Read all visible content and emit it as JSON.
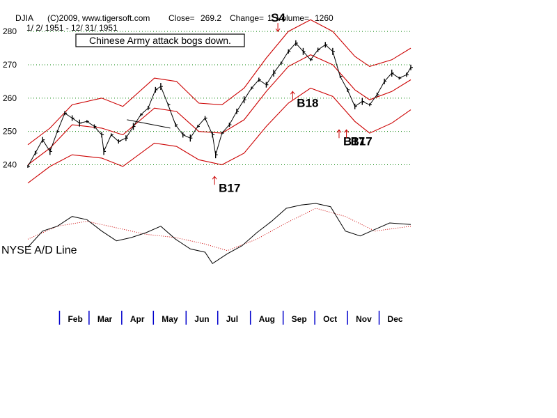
{
  "header": {
    "symbol": "DJIA",
    "copyright": "(C)2009, www.tigersoft.com",
    "close_label": "Close=",
    "close_value": "269.2",
    "change_label": "Change=",
    "change_value": "1",
    "volume_label": "Volume=",
    "volume_value": "1260",
    "date_range": "1/ 2/ 1951 - 12/ 31/ 1951"
  },
  "annotation": {
    "text": "Chinese Army attack bogs down."
  },
  "indicator": {
    "label": "NYSE A/D Line"
  },
  "colors": {
    "price": "#000000",
    "bands": "#cc0000",
    "grid": "#008000",
    "month_ticks": "#0000cc",
    "signal_arrows": "#cc0000",
    "ad_line": "#000000",
    "ad_ma": "#cc0000"
  },
  "chart_data": {
    "type": "line",
    "title": "DJIA",
    "subtitle": "1/ 2/ 1951 - 12/ 31/ 1951",
    "ylim": [
      233,
      284
    ],
    "yticks": [
      240,
      250,
      260,
      270,
      280
    ],
    "grid": "horizontal dotted",
    "months": [
      "Feb",
      "Mar",
      "Apr",
      "May",
      "Jun",
      "Jul",
      "Aug",
      "Sep",
      "Oct",
      "Nov",
      "Dec"
    ],
    "price_points": [
      [
        "1951-01-02",
        239.5
      ],
      [
        "1951-01-09",
        243.5
      ],
      [
        "1951-01-16",
        247.5
      ],
      [
        "1951-01-23",
        244.0
      ],
      [
        "1951-01-30",
        250.0
      ],
      [
        "1951-02-06",
        255.5
      ],
      [
        "1951-02-13",
        254.0
      ],
      [
        "1951-02-20",
        252.5
      ],
      [
        "1951-02-27",
        253.0
      ],
      [
        "1951-03-06",
        251.5
      ],
      [
        "1951-03-13",
        249.0
      ],
      [
        "1951-03-15",
        244.0
      ],
      [
        "1951-03-22",
        249.0
      ],
      [
        "1951-03-29",
        247.0
      ],
      [
        "1951-04-05",
        248.0
      ],
      [
        "1951-04-12",
        251.5
      ],
      [
        "1951-04-19",
        255.0
      ],
      [
        "1951-04-26",
        257.0
      ],
      [
        "1951-05-03",
        262.5
      ],
      [
        "1951-05-08",
        263.5
      ],
      [
        "1951-05-15",
        258.0
      ],
      [
        "1951-05-22",
        252.0
      ],
      [
        "1951-05-29",
        249.0
      ],
      [
        "1951-06-05",
        248.0
      ],
      [
        "1951-06-12",
        251.5
      ],
      [
        "1951-06-19",
        254.0
      ],
      [
        "1951-06-26",
        249.0
      ],
      [
        "1951-06-29",
        243.0
      ],
      [
        "1951-07-05",
        249.5
      ],
      [
        "1951-07-12",
        252.0
      ],
      [
        "1951-07-19",
        256.0
      ],
      [
        "1951-07-26",
        259.5
      ],
      [
        "1951-08-02",
        263.0
      ],
      [
        "1951-08-09",
        265.5
      ],
      [
        "1951-08-16",
        264.0
      ],
      [
        "1951-08-23",
        267.5
      ],
      [
        "1951-08-30",
        270.5
      ],
      [
        "1951-09-06",
        274.0
      ],
      [
        "1951-09-13",
        276.5
      ],
      [
        "1951-09-20",
        274.0
      ],
      [
        "1951-09-27",
        271.5
      ],
      [
        "1951-10-04",
        274.5
      ],
      [
        "1951-10-11",
        276.0
      ],
      [
        "1951-10-18",
        274.0
      ],
      [
        "1951-10-25",
        266.5
      ],
      [
        "1951-11-01",
        262.5
      ],
      [
        "1951-11-08",
        257.5
      ],
      [
        "1951-11-15",
        259.0
      ],
      [
        "1951-11-22",
        258.0
      ],
      [
        "1951-11-29",
        261.0
      ],
      [
        "1951-12-06",
        265.0
      ],
      [
        "1951-12-13",
        267.5
      ],
      [
        "1951-12-20",
        266.0
      ],
      [
        "1951-12-27",
        267.0
      ],
      [
        "1951-12-31",
        269.2
      ]
    ],
    "bands": {
      "upper": [
        [
          "1951-01-02",
          246.0
        ],
        [
          "1951-01-23",
          251.0
        ],
        [
          "1951-02-13",
          258.0
        ],
        [
          "1951-03-13",
          260.0
        ],
        [
          "1951-04-02",
          257.5
        ],
        [
          "1951-05-02",
          266.0
        ],
        [
          "1951-05-23",
          265.0
        ],
        [
          "1951-06-13",
          258.5
        ],
        [
          "1951-07-05",
          258.0
        ],
        [
          "1951-07-26",
          263.0
        ],
        [
          "1951-08-16",
          272.0
        ],
        [
          "1951-09-06",
          280.0
        ],
        [
          "1951-09-27",
          283.5
        ],
        [
          "1951-10-18",
          280.0
        ],
        [
          "1951-11-08",
          272.5
        ],
        [
          "1951-11-22",
          269.5
        ],
        [
          "1951-12-13",
          271.5
        ],
        [
          "1951-12-31",
          275.0
        ]
      ],
      "middle": [
        [
          "1951-01-02",
          240.0
        ],
        [
          "1951-01-23",
          245.0
        ],
        [
          "1951-02-13",
          252.0
        ],
        [
          "1951-03-13",
          251.0
        ],
        [
          "1951-04-02",
          249.0
        ],
        [
          "1951-05-02",
          257.0
        ],
        [
          "1951-05-23",
          256.0
        ],
        [
          "1951-06-13",
          250.0
        ],
        [
          "1951-07-05",
          249.5
        ],
        [
          "1951-07-26",
          253.5
        ],
        [
          "1951-08-16",
          262.0
        ],
        [
          "1951-09-06",
          269.5
        ],
        [
          "1951-09-27",
          273.0
        ],
        [
          "1951-10-18",
          270.0
        ],
        [
          "1951-11-08",
          262.5
        ],
        [
          "1951-11-22",
          259.5
        ],
        [
          "1951-12-13",
          262.0
        ],
        [
          "1951-12-31",
          265.5
        ]
      ],
      "lower": [
        [
          "1951-01-02",
          234.5
        ],
        [
          "1951-01-23",
          239.5
        ],
        [
          "1951-02-13",
          243.0
        ],
        [
          "1951-03-13",
          242.0
        ],
        [
          "1951-04-02",
          239.5
        ],
        [
          "1951-05-02",
          246.5
        ],
        [
          "1951-05-23",
          245.5
        ],
        [
          "1951-06-13",
          241.5
        ],
        [
          "1951-07-05",
          240.0
        ],
        [
          "1951-07-26",
          243.5
        ],
        [
          "1951-08-16",
          251.5
        ],
        [
          "1951-09-06",
          258.5
        ],
        [
          "1951-09-27",
          263.0
        ],
        [
          "1951-10-18",
          260.5
        ],
        [
          "1951-11-08",
          253.0
        ],
        [
          "1951-11-22",
          249.5
        ],
        [
          "1951-12-13",
          252.5
        ],
        [
          "1951-12-31",
          256.5
        ]
      ]
    },
    "signals": [
      {
        "label": "S4",
        "date": "1951-08-27",
        "direction": "sell",
        "y": 280.0
      },
      {
        "label": "B18",
        "date": "1951-09-10",
        "direction": "buy",
        "y": 262.0
      },
      {
        "label": "B17",
        "date": "1951-06-28",
        "direction": "buy",
        "y": 236.5
      },
      {
        "label": "B17",
        "date": "1951-10-24",
        "direction": "buy",
        "y": 250.5
      },
      {
        "label": "B17",
        "date": "1951-10-31",
        "direction": "buy",
        "y": 250.5
      }
    ],
    "trendlines": [
      {
        "from": [
          "1951-04-06",
          253.5
        ],
        "to": [
          "1951-05-17",
          251.0
        ]
      }
    ],
    "ad_line": {
      "label": "NYSE A/D Line",
      "points": [
        [
          "1951-01-02",
          10
        ],
        [
          "1951-01-16",
          30
        ],
        [
          "1951-01-30",
          36
        ],
        [
          "1951-02-13",
          48
        ],
        [
          "1951-02-27",
          44
        ],
        [
          "1951-03-13",
          30
        ],
        [
          "1951-03-27",
          18
        ],
        [
          "1951-04-10",
          22
        ],
        [
          "1951-04-24",
          28
        ],
        [
          "1951-05-08",
          36
        ],
        [
          "1951-05-22",
          20
        ],
        [
          "1951-06-05",
          8
        ],
        [
          "1951-06-19",
          4
        ],
        [
          "1951-06-26",
          -10
        ],
        [
          "1951-07-10",
          2
        ],
        [
          "1951-07-24",
          12
        ],
        [
          "1951-08-07",
          28
        ],
        [
          "1951-08-21",
          42
        ],
        [
          "1951-09-04",
          58
        ],
        [
          "1951-09-18",
          62
        ],
        [
          "1951-10-02",
          64
        ],
        [
          "1951-10-16",
          60
        ],
        [
          "1951-10-30",
          30
        ],
        [
          "1951-11-13",
          24
        ],
        [
          "1951-11-27",
          32
        ],
        [
          "1951-12-11",
          40
        ],
        [
          "1951-12-31",
          38
        ]
      ],
      "ma_points": [
        [
          "1951-01-02",
          20
        ],
        [
          "1951-01-30",
          36
        ],
        [
          "1951-02-27",
          42
        ],
        [
          "1951-03-27",
          34
        ],
        [
          "1951-04-24",
          26
        ],
        [
          "1951-05-22",
          22
        ],
        [
          "1951-06-19",
          14
        ],
        [
          "1951-07-10",
          6
        ],
        [
          "1951-08-07",
          20
        ],
        [
          "1951-09-04",
          40
        ],
        [
          "1951-10-02",
          58
        ],
        [
          "1951-10-30",
          48
        ],
        [
          "1951-11-27",
          30
        ],
        [
          "1951-12-31",
          36
        ]
      ],
      "ylim": [
        -20,
        70
      ]
    }
  }
}
